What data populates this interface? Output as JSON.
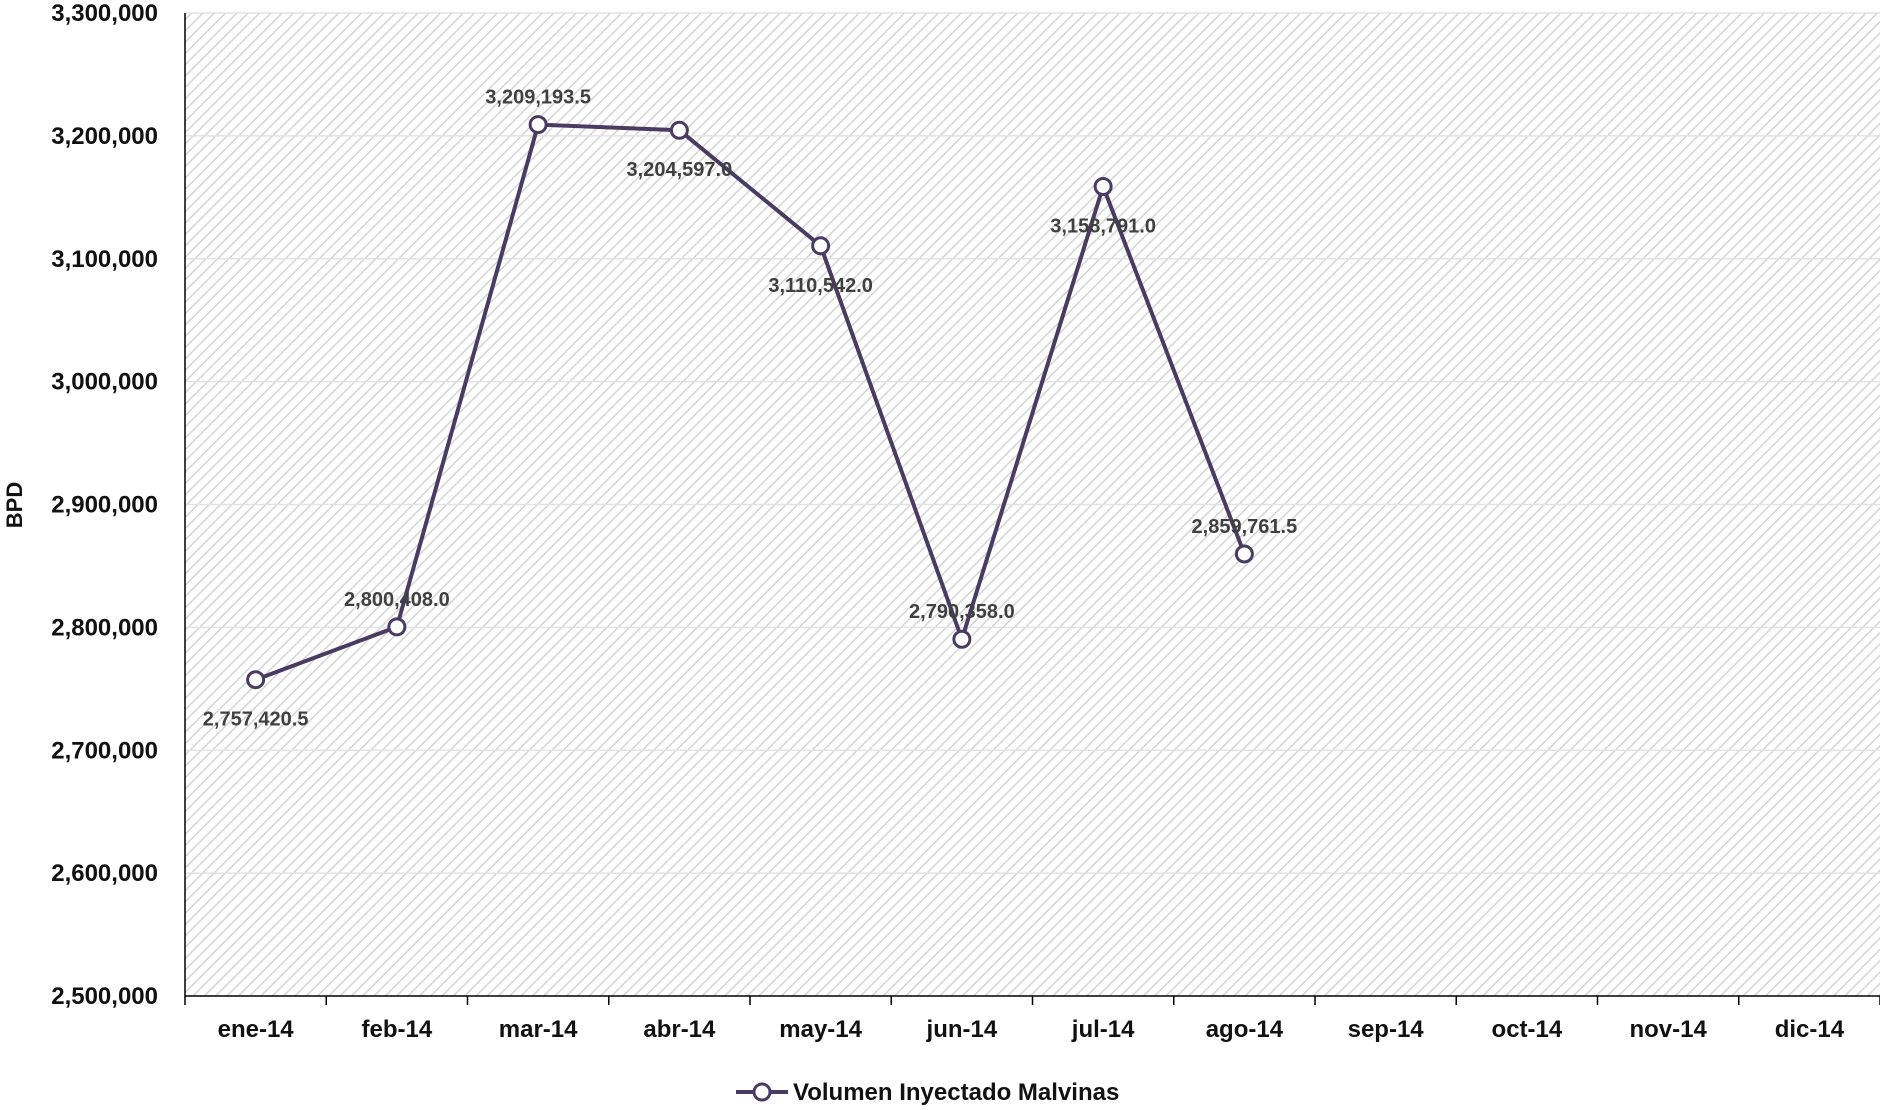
{
  "chart_data": {
    "type": "line",
    "title": "",
    "xlabel": "",
    "ylabel": "BPD",
    "ylim": [
      2500000,
      3300000
    ],
    "y_tick_step": 100000,
    "y_tick_labels": [
      "2,500,000",
      "2,600,000",
      "2,700,000",
      "2,800,000",
      "2,900,000",
      "3,000,000",
      "3,100,000",
      "3,200,000",
      "3,300,000"
    ],
    "categories": [
      "ene-14",
      "feb-14",
      "mar-14",
      "abr-14",
      "may-14",
      "jun-14",
      "jul-14",
      "ago-14",
      "sep-14",
      "oct-14",
      "nov-14",
      "dic-14"
    ],
    "series": [
      {
        "name": "Volumen Inyectado Malvinas",
        "color": "#4a3b63",
        "values": [
          2757420.5,
          2800408.0,
          3209193.5,
          3204597.0,
          3110542.0,
          2790358.0,
          3158791.0,
          2859761.5,
          null,
          null,
          null,
          null
        ],
        "data_labels": [
          "2,757,420.5",
          "2,800,408.0",
          "3,209,193.5",
          "3,204,597.0",
          "3,110,542.0",
          "2,790,358.0",
          "3,158,791.0",
          "2,859,761.5",
          "",
          "",
          "",
          ""
        ],
        "data_label_positions": [
          "below",
          "above",
          "above",
          "below",
          "below",
          "above",
          "below",
          "above",
          "",
          "",
          "",
          ""
        ]
      }
    ],
    "grid": true,
    "plot_background": "hatched",
    "legend_position": "bottom"
  }
}
